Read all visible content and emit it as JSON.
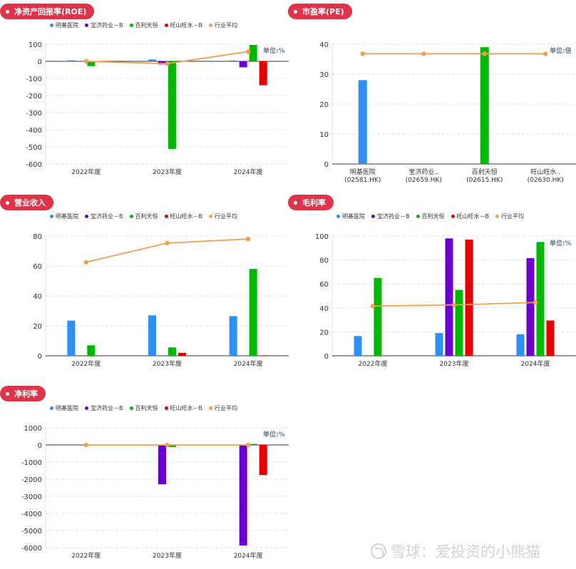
{
  "colors": {
    "badge": "#e0334a",
    "series": [
      "#2e8ff8",
      "#6a00d0",
      "#00b800",
      "#e80000",
      "#f0a050"
    ],
    "grid": "#d9d9d9",
    "axis": "#333333"
  },
  "legend_items": [
    "明基医院",
    "宝济药业－B",
    "百利天恒",
    "旺山旺水－B",
    "行业平均"
  ],
  "watermark": "雪球：爱投资的小熊猫",
  "chart_data": [
    {
      "type": "bar",
      "title": "净资产回报率(ROE)",
      "unit_label": "单位:%",
      "categories": [
        "2022年度",
        "2023年度",
        "2024年度"
      ],
      "ylim": [
        -600,
        100
      ],
      "yticks": [
        100,
        0,
        -100,
        -200,
        -300,
        -400,
        -500,
        -600
      ],
      "series": [
        {
          "name": "明基医院",
          "values": [
            6,
            11,
            5
          ]
        },
        {
          "name": "宝济药业－B",
          "values": [
            null,
            -18,
            -35
          ]
        },
        {
          "name": "百利天恒",
          "values": [
            -28,
            -512,
            96
          ]
        },
        {
          "name": "旺山旺水－B",
          "values": [
            null,
            3,
            -140
          ]
        }
      ],
      "line": {
        "name": "行业平均",
        "values": [
          0,
          -14,
          57
        ]
      }
    },
    {
      "type": "bar",
      "title": "市盈率(PE)",
      "unit_label": "单位:倍",
      "categories": [
        "明基医院\n(02581.HK)",
        "宝济药业..\n(02659.HK)",
        "百利天恒\n(02615.HK)",
        "旺山旺水..\n(02630.HK)"
      ],
      "ylim": [
        0,
        40
      ],
      "yticks": [
        40,
        30,
        20,
        10,
        0
      ],
      "values": [
        28,
        null,
        39,
        null
      ],
      "line": {
        "name": "行业平均",
        "values": [
          36.8,
          36.8,
          36.8,
          36.8
        ]
      }
    },
    {
      "type": "bar",
      "title": "营业收入",
      "unit_label": "",
      "categories": [
        "2022年度",
        "2023年度",
        "2024年度"
      ],
      "ylim": [
        0,
        80
      ],
      "yticks": [
        80,
        60,
        40,
        20,
        0
      ],
      "series": [
        {
          "name": "明基医院",
          "values": [
            23.5,
            27,
            26.5
          ]
        },
        {
          "name": "宝济药业－B",
          "values": [
            null,
            null,
            null
          ]
        },
        {
          "name": "百利天恒",
          "values": [
            7,
            5.6,
            58
          ]
        },
        {
          "name": "旺山旺水－B",
          "values": [
            null,
            2,
            0.3
          ]
        }
      ],
      "line": {
        "name": "行业平均",
        "values": [
          62.5,
          75.3,
          78
        ]
      }
    },
    {
      "type": "bar",
      "title": "毛利率",
      "unit_label": "单位:%",
      "categories": [
        "2022年度",
        "2023年度",
        "2024年度"
      ],
      "ylim": [
        0,
        100
      ],
      "yticks": [
        100,
        80,
        60,
        40,
        20,
        0
      ],
      "series": [
        {
          "name": "明基医院",
          "values": [
            16.5,
            19,
            18
          ]
        },
        {
          "name": "宝济药业－B",
          "values": [
            null,
            98,
            81.5
          ]
        },
        {
          "name": "百利天恒",
          "values": [
            65,
            55,
            95
          ]
        },
        {
          "name": "旺山旺水－B",
          "values": [
            null,
            97,
            29.5
          ]
        }
      ],
      "line": {
        "name": "行业平均",
        "values": [
          41.5,
          42.5,
          44.5
        ]
      }
    },
    {
      "type": "bar",
      "title": "净利率",
      "unit_label": "单位:%",
      "categories": [
        "2022年度",
        "2023年度",
        "2024年度"
      ],
      "ylim": [
        -6000,
        1000
      ],
      "yticks": [
        1000,
        0,
        -1000,
        -2000,
        -3000,
        -4000,
        -5000,
        -6000
      ],
      "series": [
        {
          "name": "明基医院",
          "values": [
            null,
            null,
            null
          ]
        },
        {
          "name": "宝济药业－B",
          "values": [
            null,
            -2300,
            -5880
          ]
        },
        {
          "name": "百利天恒",
          "values": [
            null,
            -120,
            60
          ]
        },
        {
          "name": "旺山旺水－B",
          "values": [
            null,
            null,
            -1760
          ]
        }
      ],
      "line": {
        "name": "行业平均",
        "values": [
          0,
          0,
          0
        ]
      }
    }
  ]
}
